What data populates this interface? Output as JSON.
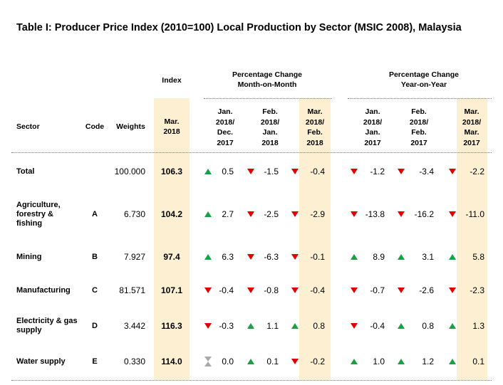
{
  "title": "Table I: Producer Price Index (2010=100) Local Production by Sector (MSIC 2008), Malaysia",
  "headers": {
    "sector": "Sector",
    "code": "Code",
    "weights": "Weights",
    "index_group": "Index",
    "index_col": [
      "Mar.",
      "2018"
    ],
    "mom_group": [
      "Percentage Change",
      "Month-on-Month"
    ],
    "mom_cols": [
      [
        "Jan.",
        "2018/",
        "Dec.",
        "2017"
      ],
      [
        "Feb.",
        "2018/",
        "Jan.",
        "2018"
      ],
      [
        "Mar.",
        "2018/",
        "Feb.",
        "2018"
      ]
    ],
    "yoy_group": [
      "Percentage Change",
      "Year-on-Year"
    ],
    "yoy_cols": [
      [
        "Jan.",
        "2018/",
        "Jan.",
        "2017"
      ],
      [
        "Feb.",
        "2018/",
        "Feb.",
        "2017"
      ],
      [
        "Mar.",
        "2018/",
        "Mar.",
        "2017"
      ]
    ]
  },
  "rows": [
    {
      "sector": [
        "Total"
      ],
      "code": "",
      "weight": "100.000",
      "index": "106.3",
      "mom": [
        {
          "v": "0.5",
          "d": "up"
        },
        {
          "v": "-1.5",
          "d": "down"
        },
        {
          "v": "-0.4",
          "d": "down"
        }
      ],
      "yoy": [
        {
          "v": "-1.2",
          "d": "down"
        },
        {
          "v": "-3.4",
          "d": "down"
        },
        {
          "v": "-2.2",
          "d": "down"
        }
      ]
    },
    {
      "sector": [
        "Agriculture,",
        "forestry &",
        "fishing"
      ],
      "code": "A",
      "weight": "6.730",
      "index": "104.2",
      "mom": [
        {
          "v": "2.7",
          "d": "up"
        },
        {
          "v": "-2.5",
          "d": "down"
        },
        {
          "v": "-2.9",
          "d": "down"
        }
      ],
      "yoy": [
        {
          "v": "-13.8",
          "d": "down"
        },
        {
          "v": "-16.2",
          "d": "down"
        },
        {
          "v": "-11.0",
          "d": "down"
        }
      ]
    },
    {
      "sector": [
        "Mining"
      ],
      "code": "B",
      "weight": "7.927",
      "index": "97.4",
      "mom": [
        {
          "v": "6.3",
          "d": "up"
        },
        {
          "v": "-6.3",
          "d": "down"
        },
        {
          "v": "-0.1",
          "d": "down"
        }
      ],
      "yoy": [
        {
          "v": "8.9",
          "d": "up"
        },
        {
          "v": "3.1",
          "d": "up"
        },
        {
          "v": "5.8",
          "d": "up"
        }
      ]
    },
    {
      "sector": [
        "Manufacturing"
      ],
      "code": "C",
      "weight": "81.571",
      "index": "107.1",
      "mom": [
        {
          "v": "-0.4",
          "d": "down"
        },
        {
          "v": "-0.8",
          "d": "down"
        },
        {
          "v": "-0.4",
          "d": "down"
        }
      ],
      "yoy": [
        {
          "v": "-0.7",
          "d": "down"
        },
        {
          "v": "-2.6",
          "d": "down"
        },
        {
          "v": "-2.3",
          "d": "down"
        }
      ]
    },
    {
      "sector": [
        "Electricity & gas",
        "supply"
      ],
      "code": "D",
      "weight": "3.442",
      "index": "116.3",
      "mom": [
        {
          "v": "-0.3",
          "d": "down"
        },
        {
          "v": "1.1",
          "d": "up"
        },
        {
          "v": "0.8",
          "d": "up"
        }
      ],
      "yoy": [
        {
          "v": "-0.4",
          "d": "down"
        },
        {
          "v": "0.8",
          "d": "up"
        },
        {
          "v": "1.3",
          "d": "up"
        }
      ]
    },
    {
      "sector": [
        "Water supply"
      ],
      "code": "E",
      "weight": "0.330",
      "index": "114.0",
      "mom": [
        {
          "v": "0.0",
          "d": "flat"
        },
        {
          "v": "0.1",
          "d": "up"
        },
        {
          "v": "-0.2",
          "d": "down"
        }
      ],
      "yoy": [
        {
          "v": "1.0",
          "d": "up"
        },
        {
          "v": "1.2",
          "d": "up"
        },
        {
          "v": "0.1",
          "d": "up"
        }
      ]
    }
  ],
  "colors": {
    "highlight": "#fdf0d2",
    "up": "#1c9e43",
    "down": "#e00000",
    "flat": "#aaaaaa"
  }
}
